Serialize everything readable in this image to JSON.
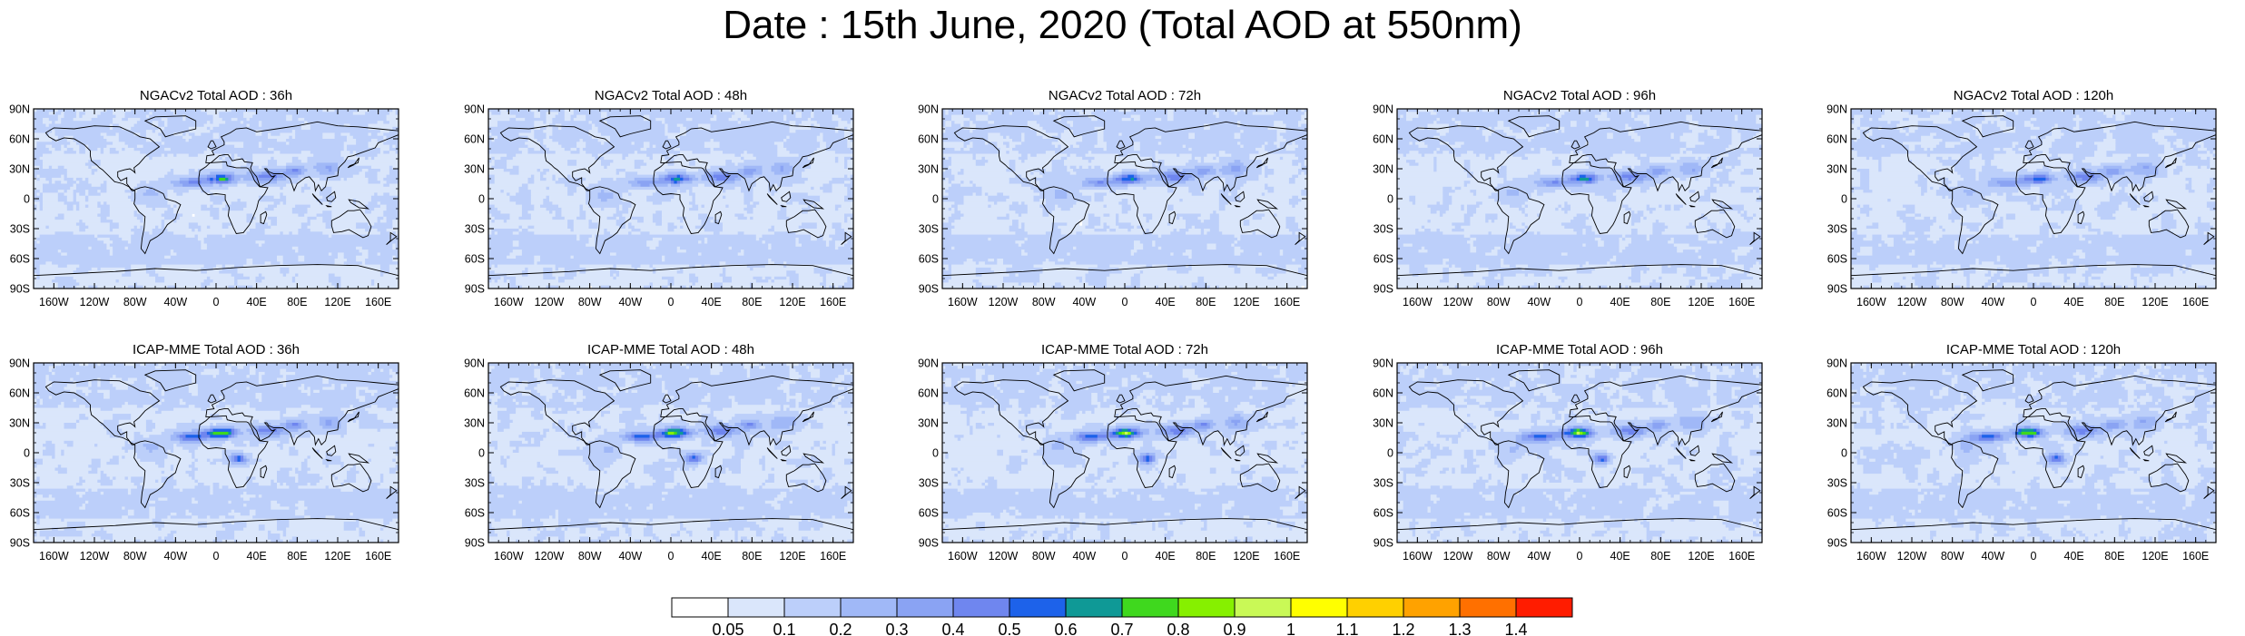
{
  "title": "Date : 15th June, 2020 (Total AOD at 550nm)",
  "lat_ticks": [
    "90N",
    "60N",
    "30N",
    "0",
    "30S",
    "60S",
    "90S"
  ],
  "lon_ticks": [
    "160W",
    "120W",
    "80W",
    "40W",
    "0",
    "40E",
    "80E",
    "120E",
    "160E"
  ],
  "panels": [
    {
      "title": "NGACv2 Total AOD : 36h",
      "model": "NGACv2",
      "lead_hours": 36
    },
    {
      "title": "NGACv2 Total AOD : 48h",
      "model": "NGACv2",
      "lead_hours": 48
    },
    {
      "title": "NGACv2 Total AOD : 72h",
      "model": "NGACv2",
      "lead_hours": 72
    },
    {
      "title": "NGACv2 Total AOD : 96h",
      "model": "NGACv2",
      "lead_hours": 96
    },
    {
      "title": "NGACv2 Total AOD : 120h",
      "model": "NGACv2",
      "lead_hours": 120
    },
    {
      "title": "ICAP-MME Total AOD : 36h",
      "model": "ICAP-MME",
      "lead_hours": 36
    },
    {
      "title": "ICAP-MME Total AOD : 48h",
      "model": "ICAP-MME",
      "lead_hours": 48
    },
    {
      "title": "ICAP-MME Total AOD : 72h",
      "model": "ICAP-MME",
      "lead_hours": 72
    },
    {
      "title": "ICAP-MME Total AOD : 96h",
      "model": "ICAP-MME",
      "lead_hours": 96
    },
    {
      "title": "ICAP-MME Total AOD : 120h",
      "model": "ICAP-MME",
      "lead_hours": 120
    }
  ],
  "colorbar": {
    "labels": [
      "0.05",
      "0.1",
      "0.2",
      "0.3",
      "0.4",
      "0.5",
      "0.6",
      "0.7",
      "0.8",
      "0.9",
      "1",
      "1.1",
      "1.2",
      "1.3",
      "1.4"
    ],
    "colors": [
      "#ffffff",
      "#dae6fb",
      "#bccffa",
      "#a0b8f7",
      "#8aa3f3",
      "#6f86ef",
      "#1d62ea",
      "#0f9996",
      "#3fd81e",
      "#86f000",
      "#c9f956",
      "#ffff00",
      "#ffd000",
      "#ffa200",
      "#ff7000",
      "#ff1c00"
    ]
  }
}
